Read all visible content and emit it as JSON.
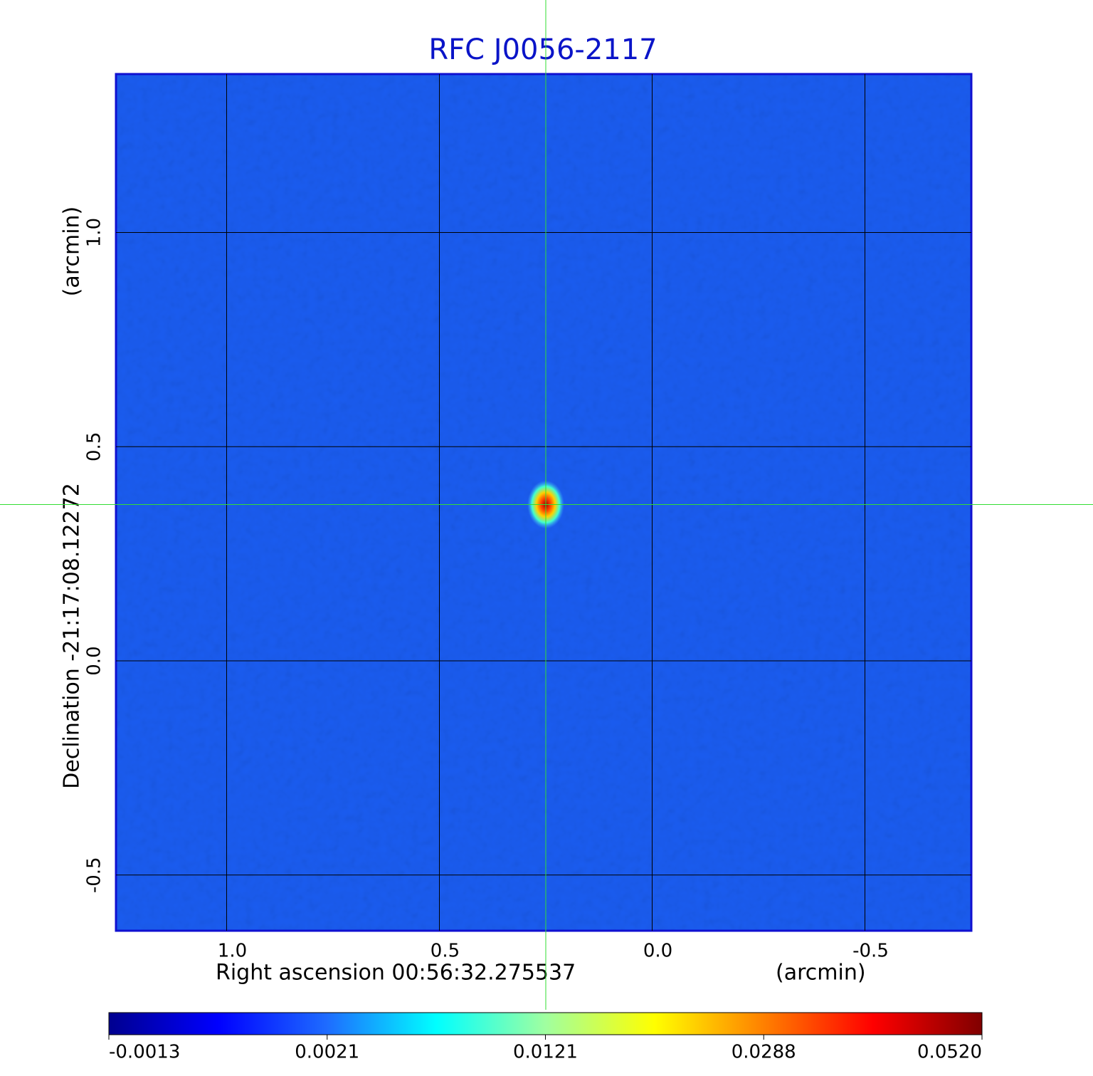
{
  "chart_data": {
    "type": "image",
    "title": "RFC J0056-2117",
    "xlabel": "Right ascension  00:56:32.275537",
    "xunit": "(arcmin)",
    "ylabel": "Declination  -21:17:08.12272",
    "yunit": "(arcmin)",
    "xlim": [
      1.26,
      -0.75
    ],
    "ylim": [
      -0.63,
      1.37
    ],
    "xticks": [
      {
        "value": 1,
        "label": "1.0"
      },
      0.5,
      {
        "value": 0,
        "label": "0.0"
      },
      -0.5
    ],
    "yticks": [
      -0.5,
      {
        "value": 0,
        "label": "0.0"
      },
      0.5,
      {
        "value": 1,
        "label": "1.0"
      }
    ],
    "grid": true,
    "background_color": "#1a5cf0",
    "crosshair": {
      "x": 0.25,
      "y": 0.365,
      "color": "#33dd33"
    },
    "peak": {
      "x": 0.25,
      "y": 0.365,
      "value": 0.052
    },
    "colorbar": {
      "ticks": [
        -0.0013,
        0.0021,
        0.0121,
        0.0288,
        {
          "value": 0.052,
          "label": "0.0520"
        }
      ],
      "colormap": [
        "#00008f",
        "#0000ff",
        "#1e6cff",
        "#00ffff",
        "#a0ffa0",
        "#ffff00",
        "#ff8000",
        "#ff0000",
        "#800000"
      ]
    }
  }
}
